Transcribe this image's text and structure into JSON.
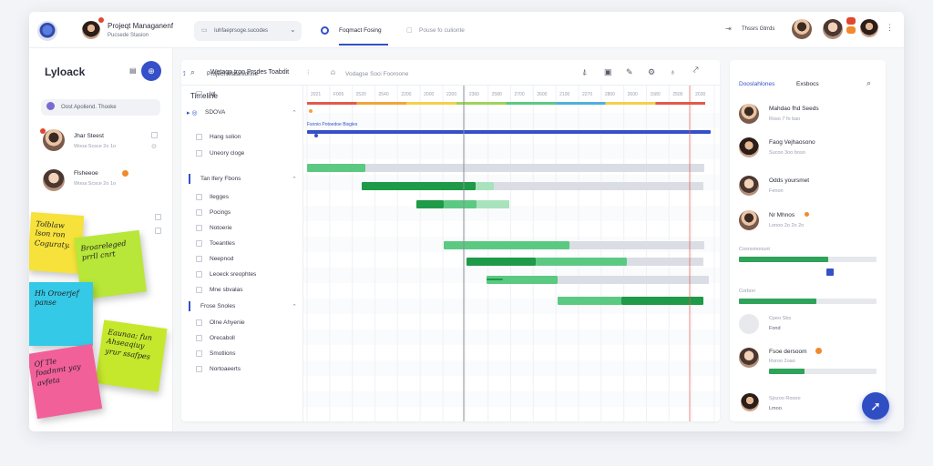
{
  "topbar": {
    "app_name": "Projeqt Managanenf",
    "app_sub": "Pucsede Stasion",
    "search_text": "Iuhfaeprsoge.sucodes",
    "tab_active": "Foqmact Fosing",
    "tab_inactive": "Pouse fo culionte",
    "right_label": "Thssrs Gtrrds"
  },
  "sidebar": {
    "title": "Lyloack",
    "search_text": "Oost Apoliend. Thooke",
    "users": [
      {
        "name": "Jhar Steest",
        "sub": "Wooa Scsce 2o 1o"
      },
      {
        "name": "Flsheeoe",
        "sub": "Wooa Scsce 2o 1o"
      }
    ],
    "stickies": [
      "Tolblaw lson ron Coguraty.",
      "Broareleged prrll cnrt",
      "Hh Oroerjef panse",
      "Eaunaa; fun Ahseaqiuy yrur ssafpes",
      "Of Tle foadnmt yay avfeta"
    ]
  },
  "gantt": {
    "toolbar_title": "Wetagn tron Prsdes Toabdit",
    "toolbar_sub": "Vodagse Soci Fooroone",
    "timeline_label": "Timeline",
    "tree": [
      {
        "label": "Project Matahionne",
        "kind": "root"
      },
      {
        "label": "lql",
        "kind": "item"
      },
      {
        "label": "SDOVA",
        "kind": "group"
      },
      {
        "label": "Hang solion",
        "kind": "item"
      },
      {
        "label": "Uneory cloge",
        "kind": "item"
      },
      {
        "label": "Tan lfery Fbons",
        "kind": "section"
      },
      {
        "label": "Ilegges",
        "kind": "item"
      },
      {
        "label": "Pocings",
        "kind": "item"
      },
      {
        "label": "Notoerie",
        "kind": "item"
      },
      {
        "label": "Toeantles",
        "kind": "item"
      },
      {
        "label": "Neepnod",
        "kind": "item"
      },
      {
        "label": "Leoeck sreophtes",
        "kind": "item"
      },
      {
        "label": "Mne sbvalas",
        "kind": "item"
      },
      {
        "label": "Frose Snoles",
        "kind": "section"
      },
      {
        "label": "Olne Ahyenie",
        "kind": "item"
      },
      {
        "label": "Orecaboll",
        "kind": "item"
      },
      {
        "label": "Smotlions",
        "kind": "item"
      },
      {
        "label": "Nortoaeerts",
        "kind": "item"
      }
    ],
    "ticks": [
      "2021",
      "F005",
      "2520",
      "2540",
      "2200",
      "2000",
      "2200",
      "2360",
      "2580",
      "2700",
      "2600",
      "2100",
      "2270",
      "2800",
      "2600",
      "1580",
      "2500",
      "2030"
    ],
    "milestone_label": "Fsnnio Potoedoe Bisgles",
    "colors": {
      "green_dark": "#1e9a48",
      "green_mid": "#5cc983",
      "green_light": "#a8e3bd",
      "gray": "#dadde3",
      "blue": "#3550c8",
      "red_line": "#e05a4a"
    }
  },
  "right_panel": {
    "tab_active": "Dooslahlones",
    "tab_inactive": "Exsbocs",
    "people": [
      {
        "name": "Mahdao fhd Seeds",
        "sub": "Roso 7 fo bao"
      },
      {
        "name": "Faog Vejhaosono",
        "sub": "Sucoo 3oo boso"
      },
      {
        "name": "Odds yoursmet",
        "sub": "Fenon"
      },
      {
        "name": "Nr Mhnos",
        "sub": "Lonoo 2o 2o 2o"
      }
    ],
    "section1_label": "Cosnsmoount",
    "section1_progress": 0.65,
    "section2_label": "Corbon",
    "section2_progress": 0.56,
    "person_fs": {
      "name": "Fsoe dersoom",
      "sub": "Roroo 2oao"
    },
    "section3_progress": 0.33,
    "bottom_person": {
      "name": "Sjozoo Roooo",
      "sub": "Lmoo"
    },
    "mid_person": {
      "name": "Cpeo Sbs",
      "sub": "Fond"
    }
  }
}
